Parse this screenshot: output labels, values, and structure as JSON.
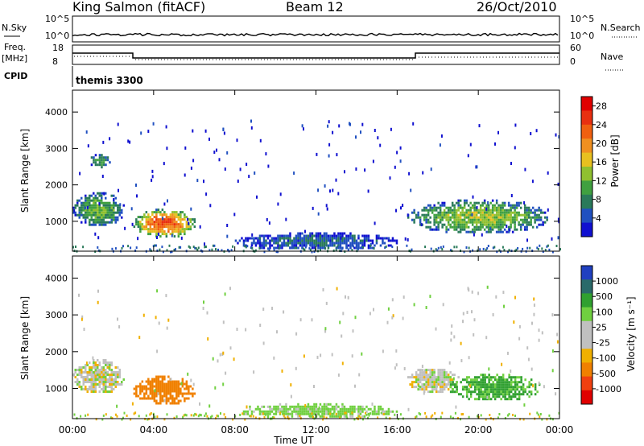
{
  "header": {
    "station": "King Salmon (fitACF)",
    "beam": "Beam 12",
    "date": "26/Oct/2010"
  },
  "top_panels": {
    "nsky_label": "N.Sky",
    "nsky_ticks": [
      "10^5",
      "10^0"
    ],
    "nsky_right_ticks": [
      "10^5",
      "10^0"
    ],
    "nsearch_label": "N.Search",
    "freq_label_1": "Freq.",
    "freq_label_2": "[MHz]",
    "freq_ticks": [
      "18",
      "8"
    ],
    "nave_ticks": [
      "60",
      "0"
    ],
    "nave_label": "Nave",
    "cpid_label": "CPID",
    "cpid_value": "themis 3300"
  },
  "colors": {
    "power_scale": [
      "#1010d0",
      "#2050c0",
      "#2a7a5a",
      "#40a040",
      "#90c030",
      "#e8c020",
      "#f09020",
      "#f06010",
      "#e83010",
      "#e00000"
    ],
    "velocity_scale": [
      "#e00000",
      "#f04010",
      "#f08000",
      "#f0b000",
      "#c0c0c0",
      "#c0c0c0",
      "#70d040",
      "#30a030",
      "#2a6a6a",
      "#2040c0"
    ],
    "ground_green": "#60c050"
  },
  "chart_data": [
    {
      "type": "heatmap",
      "name": "power",
      "xlabel": "",
      "ylabel": "Slant Range [km]",
      "x_ticks": [
        "00:00",
        "04:00",
        "08:00",
        "12:00",
        "16:00",
        "20:00",
        "00:00"
      ],
      "x_range_hours": [
        0,
        24
      ],
      "y_ticks": [
        1000,
        2000,
        3000,
        4000
      ],
      "y_range_km": [
        180,
        4600
      ],
      "colorbar": {
        "label": "Power [dB]",
        "ticks": [
          4,
          8,
          12,
          16,
          20,
          24,
          28
        ],
        "range": [
          0,
          30
        ]
      },
      "regions": [
        {
          "t": [
            0.0,
            2.5
          ],
          "r": [
            900,
            1800
          ],
          "value": 12
        },
        {
          "t": [
            3.0,
            6.0
          ],
          "r": [
            600,
            1350
          ],
          "value": 24
        },
        {
          "t": [
            16.5,
            23.5
          ],
          "r": [
            700,
            1600
          ],
          "value": 14
        },
        {
          "t": [
            8.0,
            16.0
          ],
          "r": [
            250,
            700
          ],
          "value": 6
        },
        {
          "t": [
            0.8,
            1.8
          ],
          "r": [
            2500,
            2850
          ],
          "value": 10
        }
      ]
    },
    {
      "type": "heatmap",
      "name": "velocity",
      "xlabel": "Time UT",
      "ylabel": "Slant Range [km]",
      "x_ticks": [
        "00:00",
        "04:00",
        "08:00",
        "12:00",
        "16:00",
        "20:00",
        "00:00"
      ],
      "x_range_hours": [
        0,
        24
      ],
      "y_ticks": [
        1000,
        2000,
        3000,
        4000
      ],
      "y_range_km": [
        180,
        4600
      ],
      "colorbar": {
        "label": "Velocity [m s⁻¹]",
        "ticks": [
          "1000",
          "500",
          "100",
          "25",
          "-25",
          "-100",
          "-500",
          "-1000"
        ]
      },
      "regions": [
        {
          "t": [
            0.0,
            2.5
          ],
          "r": [
            900,
            1800
          ],
          "value": 0
        },
        {
          "t": [
            3.0,
            6.0
          ],
          "r": [
            600,
            1350
          ],
          "value": -200
        },
        {
          "t": [
            16.5,
            19.0
          ],
          "r": [
            900,
            1600
          ],
          "value": 0
        },
        {
          "t": [
            18.5,
            23.0
          ],
          "r": [
            700,
            1400
          ],
          "value": 120
        },
        {
          "t": [
            8.0,
            16.0
          ],
          "r": [
            250,
            600
          ],
          "value": 50
        }
      ]
    }
  ]
}
